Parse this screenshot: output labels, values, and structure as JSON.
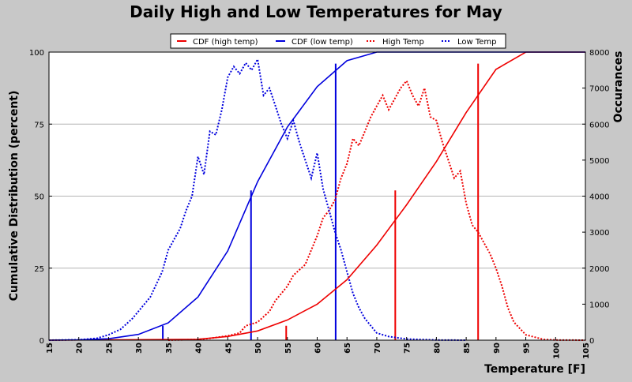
{
  "chart_data": {
    "type": "line",
    "title": "Daily High and Low Temperatures for May",
    "xlabel": "Temperature [F]",
    "ylabel": "Cumulative Distribution (percent)",
    "ylabel_right": "Occurances",
    "xlim": [
      15,
      105
    ],
    "ylim": [
      0,
      100
    ],
    "ylim_right": [
      0,
      8000
    ],
    "x_ticks": [
      15,
      20,
      25,
      30,
      35,
      40,
      45,
      50,
      55,
      60,
      65,
      70,
      75,
      80,
      85,
      90,
      95,
      100,
      105
    ],
    "y_ticks": [
      0,
      25,
      50,
      75,
      100
    ],
    "y_ticks_right": [
      0,
      1000,
      2000,
      3000,
      4000,
      5000,
      6000,
      7000,
      8000
    ],
    "grid": true,
    "legend_position": "top",
    "colors": {
      "high": "#ee0000",
      "low": "#0000dd"
    },
    "cdf_series": [
      {
        "name": "CDF (high temp)",
        "color": "#ee0000",
        "style": "solid",
        "x": [
          15,
          40,
          45,
          50,
          55,
          60,
          65,
          70,
          75,
          80,
          85,
          90,
          95,
          105
        ],
        "y": [
          0,
          0.3,
          1.3,
          3.2,
          7,
          12.5,
          21,
          33,
          47,
          62,
          79,
          94,
          100,
          100
        ]
      },
      {
        "name": "CDF (low temp)",
        "color": "#0000dd",
        "style": "solid",
        "x": [
          15,
          20,
          25,
          30,
          35,
          40,
          45,
          50,
          55,
          60,
          65,
          70,
          75,
          105
        ],
        "y": [
          0,
          0.1,
          0.5,
          2,
          6,
          15,
          31,
          55,
          74,
          88,
          97,
          100,
          100,
          100
        ]
      }
    ],
    "occurrence_series": [
      {
        "name": "High Temp",
        "color": "#ee0000",
        "style": "dotted",
        "x": [
          35,
          40,
          42,
          45,
          47,
          48,
          50,
          52,
          53,
          55,
          56,
          58,
          59,
          60,
          61,
          62,
          63,
          64,
          65,
          66,
          67,
          68,
          69,
          70,
          71,
          72,
          73,
          74,
          75,
          76,
          77,
          78,
          79,
          80,
          81,
          82,
          83,
          84,
          85,
          86,
          87,
          88,
          89,
          90,
          91,
          92,
          93,
          95,
          98,
          100,
          105
        ],
        "y": [
          0,
          20,
          50,
          120,
          200,
          400,
          500,
          800,
          1100,
          1500,
          1800,
          2100,
          2500,
          2900,
          3400,
          3600,
          3900,
          4500,
          4900,
          5600,
          5400,
          5800,
          6200,
          6500,
          6800,
          6400,
          6700,
          7000,
          7200,
          6800,
          6500,
          7000,
          6200,
          6100,
          5500,
          5000,
          4500,
          4700,
          3800,
          3200,
          3000,
          2700,
          2400,
          2000,
          1500,
          900,
          500,
          150,
          20,
          5,
          0
        ]
      },
      {
        "name": "Low Temp",
        "color": "#0000dd",
        "style": "dotted",
        "x": [
          15,
          20,
          23,
          25,
          27,
          29,
          30,
          32,
          34,
          35,
          36,
          37,
          38,
          39,
          40,
          41,
          42,
          43,
          44,
          45,
          46,
          47,
          48,
          49,
          50,
          51,
          52,
          53,
          54,
          55,
          56,
          57,
          58,
          59,
          60,
          61,
          62,
          63,
          64,
          65,
          66,
          67,
          68,
          69,
          70,
          72,
          75,
          80,
          85
        ],
        "y": [
          0,
          10,
          50,
          150,
          300,
          600,
          800,
          1200,
          1900,
          2500,
          2800,
          3100,
          3600,
          4000,
          5100,
          4600,
          5800,
          5700,
          6400,
          7300,
          7600,
          7400,
          7700,
          7500,
          7800,
          6800,
          7000,
          6500,
          6000,
          5600,
          6100,
          5500,
          5000,
          4500,
          5200,
          4200,
          3600,
          3000,
          2500,
          1900,
          1300,
          900,
          600,
          400,
          200,
          100,
          30,
          5,
          0
        ]
      }
    ],
    "reference_lines": [
      {
        "series": "CDF (low temp)",
        "color": "#0000dd",
        "x": 34.1,
        "y": 5
      },
      {
        "series": "CDF (low temp)",
        "color": "#0000dd",
        "x": 48.9,
        "y": 52
      },
      {
        "series": "CDF (low temp)",
        "color": "#0000dd",
        "x": 63.1,
        "y": 96
      },
      {
        "series": "CDF (high temp)",
        "color": "#ee0000",
        "x": 54.8,
        "y": 5
      },
      {
        "series": "CDF (high temp)",
        "color": "#ee0000",
        "x": 73.1,
        "y": 52
      },
      {
        "series": "CDF (high temp)",
        "color": "#ee0000",
        "x": 87.0,
        "y": 96
      }
    ]
  }
}
